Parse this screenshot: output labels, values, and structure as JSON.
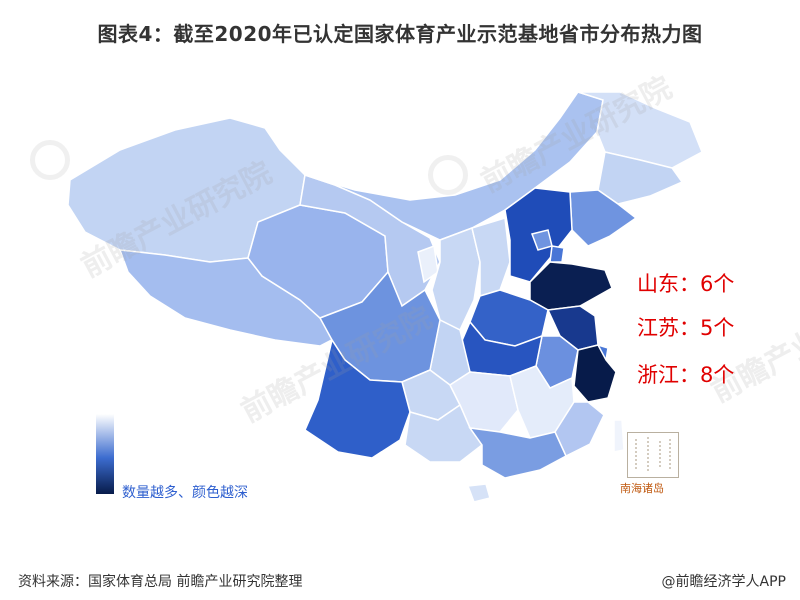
{
  "title": "图表4：截至2020年已认定国家体育产业示范基地省市分布热力图",
  "map": {
    "color_scale": [
      "#ffffff",
      "#3c6ccf",
      "#071b4a"
    ],
    "highlighted_regions": [
      {
        "label": "山东：6个",
        "province": "山东",
        "count": 6
      },
      {
        "label": "江苏：5个",
        "province": "江苏",
        "count": 5
      },
      {
        "label": "浙江：8个",
        "province": "浙江",
        "count": 8
      }
    ],
    "callout_color": "#e00000",
    "legend_label": "数量越多、颜色越深",
    "inset_label": "南海诸岛",
    "watermark_text": "前瞻产业研究院"
  },
  "footer": {
    "source": "资料来源：国家体育总局 前瞻产业研究院整理",
    "app": "@前瞻经济学人APP"
  }
}
